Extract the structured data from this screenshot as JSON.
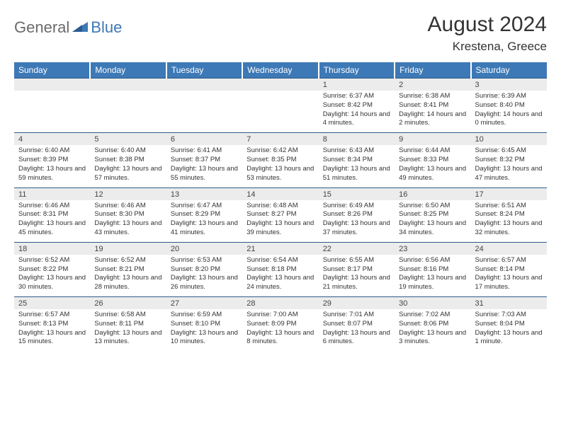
{
  "logo": {
    "part1": "General",
    "part2": "Blue"
  },
  "title": "August 2024",
  "location": "Krestena, Greece",
  "colors": {
    "header_bg": "#3d79b6",
    "header_text": "#ffffff",
    "daynum_bg": "#ececec",
    "border": "#2e5a8a",
    "logo_gray": "#6a6a6a",
    "logo_blue": "#3d79b6"
  },
  "weekdays": [
    "Sunday",
    "Monday",
    "Tuesday",
    "Wednesday",
    "Thursday",
    "Friday",
    "Saturday"
  ],
  "weeks": [
    {
      "nums": [
        "",
        "",
        "",
        "",
        "1",
        "2",
        "3"
      ],
      "cells": [
        "",
        "",
        "",
        "",
        "Sunrise: 6:37 AM\nSunset: 8:42 PM\nDaylight: 14 hours and 4 minutes.",
        "Sunrise: 6:38 AM\nSunset: 8:41 PM\nDaylight: 14 hours and 2 minutes.",
        "Sunrise: 6:39 AM\nSunset: 8:40 PM\nDaylight: 14 hours and 0 minutes."
      ]
    },
    {
      "nums": [
        "4",
        "5",
        "6",
        "7",
        "8",
        "9",
        "10"
      ],
      "cells": [
        "Sunrise: 6:40 AM\nSunset: 8:39 PM\nDaylight: 13 hours and 59 minutes.",
        "Sunrise: 6:40 AM\nSunset: 8:38 PM\nDaylight: 13 hours and 57 minutes.",
        "Sunrise: 6:41 AM\nSunset: 8:37 PM\nDaylight: 13 hours and 55 minutes.",
        "Sunrise: 6:42 AM\nSunset: 8:35 PM\nDaylight: 13 hours and 53 minutes.",
        "Sunrise: 6:43 AM\nSunset: 8:34 PM\nDaylight: 13 hours and 51 minutes.",
        "Sunrise: 6:44 AM\nSunset: 8:33 PM\nDaylight: 13 hours and 49 minutes.",
        "Sunrise: 6:45 AM\nSunset: 8:32 PM\nDaylight: 13 hours and 47 minutes."
      ]
    },
    {
      "nums": [
        "11",
        "12",
        "13",
        "14",
        "15",
        "16",
        "17"
      ],
      "cells": [
        "Sunrise: 6:46 AM\nSunset: 8:31 PM\nDaylight: 13 hours and 45 minutes.",
        "Sunrise: 6:46 AM\nSunset: 8:30 PM\nDaylight: 13 hours and 43 minutes.",
        "Sunrise: 6:47 AM\nSunset: 8:29 PM\nDaylight: 13 hours and 41 minutes.",
        "Sunrise: 6:48 AM\nSunset: 8:27 PM\nDaylight: 13 hours and 39 minutes.",
        "Sunrise: 6:49 AM\nSunset: 8:26 PM\nDaylight: 13 hours and 37 minutes.",
        "Sunrise: 6:50 AM\nSunset: 8:25 PM\nDaylight: 13 hours and 34 minutes.",
        "Sunrise: 6:51 AM\nSunset: 8:24 PM\nDaylight: 13 hours and 32 minutes."
      ]
    },
    {
      "nums": [
        "18",
        "19",
        "20",
        "21",
        "22",
        "23",
        "24"
      ],
      "cells": [
        "Sunrise: 6:52 AM\nSunset: 8:22 PM\nDaylight: 13 hours and 30 minutes.",
        "Sunrise: 6:52 AM\nSunset: 8:21 PM\nDaylight: 13 hours and 28 minutes.",
        "Sunrise: 6:53 AM\nSunset: 8:20 PM\nDaylight: 13 hours and 26 minutes.",
        "Sunrise: 6:54 AM\nSunset: 8:18 PM\nDaylight: 13 hours and 24 minutes.",
        "Sunrise: 6:55 AM\nSunset: 8:17 PM\nDaylight: 13 hours and 21 minutes.",
        "Sunrise: 6:56 AM\nSunset: 8:16 PM\nDaylight: 13 hours and 19 minutes.",
        "Sunrise: 6:57 AM\nSunset: 8:14 PM\nDaylight: 13 hours and 17 minutes."
      ]
    },
    {
      "nums": [
        "25",
        "26",
        "27",
        "28",
        "29",
        "30",
        "31"
      ],
      "cells": [
        "Sunrise: 6:57 AM\nSunset: 8:13 PM\nDaylight: 13 hours and 15 minutes.",
        "Sunrise: 6:58 AM\nSunset: 8:11 PM\nDaylight: 13 hours and 13 minutes.",
        "Sunrise: 6:59 AM\nSunset: 8:10 PM\nDaylight: 13 hours and 10 minutes.",
        "Sunrise: 7:00 AM\nSunset: 8:09 PM\nDaylight: 13 hours and 8 minutes.",
        "Sunrise: 7:01 AM\nSunset: 8:07 PM\nDaylight: 13 hours and 6 minutes.",
        "Sunrise: 7:02 AM\nSunset: 8:06 PM\nDaylight: 13 hours and 3 minutes.",
        "Sunrise: 7:03 AM\nSunset: 8:04 PM\nDaylight: 13 hours and 1 minute."
      ]
    }
  ]
}
